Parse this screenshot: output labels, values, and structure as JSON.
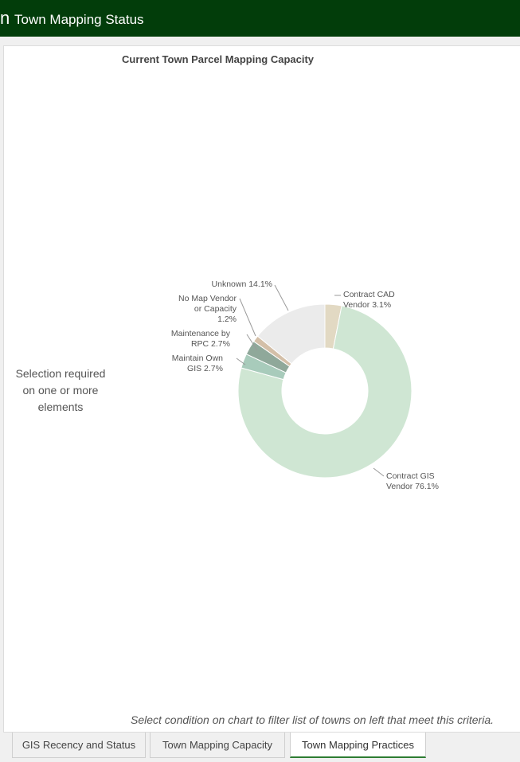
{
  "header": {
    "glyph": "n",
    "title": "Town Mapping Status"
  },
  "panel": {
    "chart_title": "Current Town Parcel Mapping Capacity",
    "selection_message": "Selection required on one or more elements",
    "footer_note": "Select condition on chart to filter list of towns on left that meet this criteria."
  },
  "tabs": [
    {
      "label": "GIS Recency and Status",
      "active": false
    },
    {
      "label": "Town Mapping Capacity",
      "active": false
    },
    {
      "label": "Town Mapping Practices",
      "active": true
    }
  ],
  "chart_data": {
    "type": "pie",
    "donut": true,
    "title": "Current Town Parcel Mapping Capacity",
    "categories": [
      "Contract CAD Vendor",
      "Contract GIS Vendor",
      "Maintain Own GIS",
      "Maintenance by RPC",
      "No Map Vendor or Capacity",
      "Unknown"
    ],
    "values": [
      3.1,
      76.1,
      2.7,
      2.7,
      1.2,
      14.1
    ],
    "labels": [
      [
        "Contract CAD",
        "Vendor 3.1%"
      ],
      [
        "Contract GIS",
        "Vendor 76.1%"
      ],
      [
        "Maintain Own",
        "GIS 2.7%"
      ],
      [
        "Maintenance by",
        "RPC 2.7%"
      ],
      [
        "No Map Vendor",
        "or Capacity",
        "1.2%"
      ],
      [
        "Unknown 14.1%"
      ]
    ],
    "colors": [
      "#e2d9c3",
      "#cfe6d3",
      "#a8cbbb",
      "#8fa89a",
      "#d3bfa8",
      "#ebebeb"
    ],
    "legend": "none"
  }
}
